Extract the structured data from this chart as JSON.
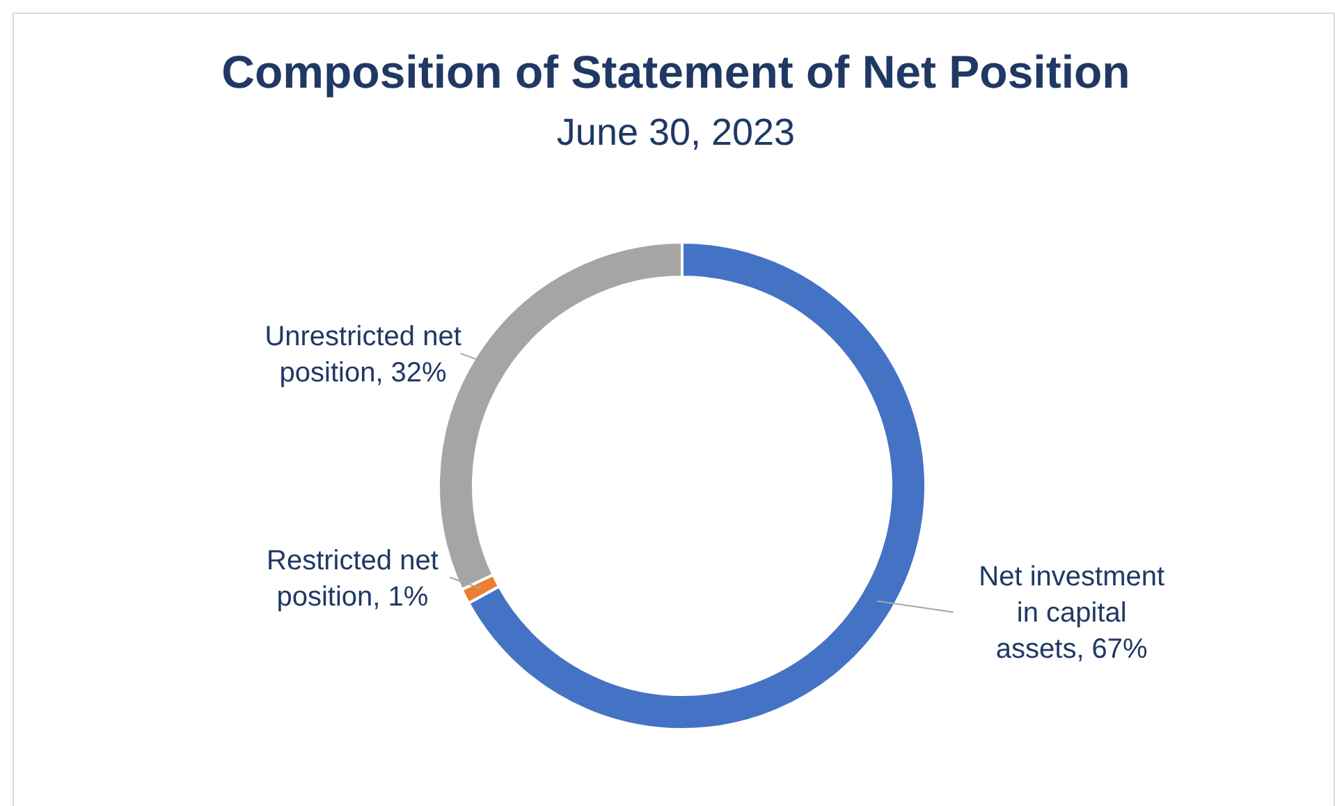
{
  "chart_data": {
    "type": "donut",
    "title": "Composition of Statement of Net Position",
    "subtitle": "June 30, 2023",
    "categories": [
      "Net investment in capital assets",
      "Restricted net position",
      "Unrestricted net position"
    ],
    "values": [
      67,
      1,
      32
    ],
    "colors": [
      "#4472c4",
      "#ed7d31",
      "#a5a5a5"
    ],
    "value_labels": [
      ", 67%",
      ", 1%",
      ", 32%"
    ]
  }
}
